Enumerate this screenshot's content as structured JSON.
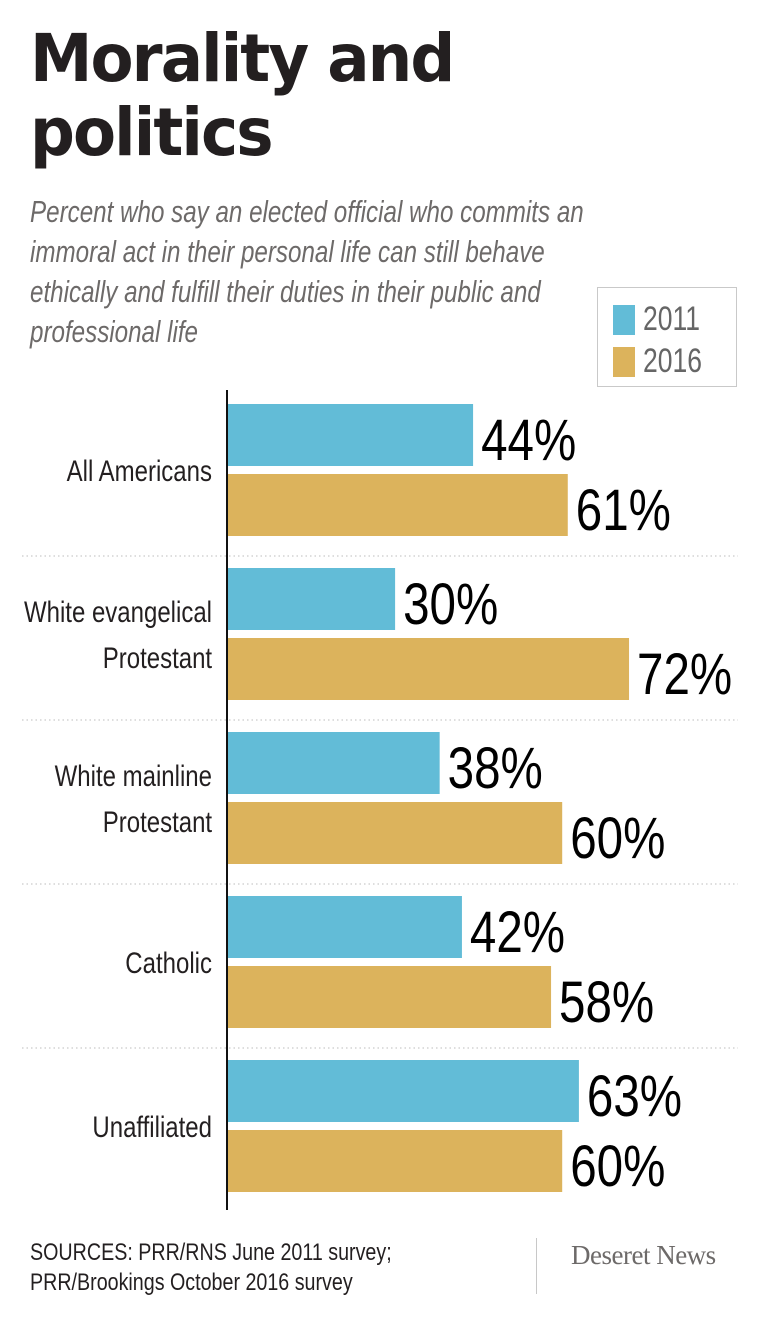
{
  "header": {
    "title_line1": "Morality and",
    "title_line2": "politics",
    "subtitle": "Percent who say an elected official who commits an immoral act in their personal life can still behave ethically and fulfill their duties in their public and professional life"
  },
  "legend": {
    "items": [
      {
        "label": "2011",
        "color": "#62bcd7"
      },
      {
        "label": "2016",
        "color": "#dcb35c"
      }
    ]
  },
  "chart_data": {
    "type": "bar",
    "orientation": "horizontal",
    "title": "Morality and politics",
    "subtitle": "Percent who say an elected official who commits an immoral act in their personal life can still behave ethically and fulfill their duties in their public and professional life",
    "categories": [
      "All Americans",
      "White evangelical Protestant",
      "White mainline Protestant",
      "Catholic",
      "Unaffiliated"
    ],
    "category_lines": [
      [
        "All Americans"
      ],
      [
        "White evangelical",
        "Protestant"
      ],
      [
        "White mainline",
        "Protestant"
      ],
      [
        "Catholic"
      ],
      [
        "Unaffiliated"
      ]
    ],
    "series": [
      {
        "name": "2011",
        "color": "#62bcd7",
        "values": [
          44,
          30,
          38,
          42,
          63
        ]
      },
      {
        "name": "2016",
        "color": "#dcb35c",
        "values": [
          61,
          72,
          60,
          58,
          60
        ]
      }
    ],
    "value_suffix": "%",
    "xlim": [
      0,
      100
    ],
    "xlabel": "",
    "ylabel": "",
    "grid": false,
    "legend_position": "top-right"
  },
  "footer": {
    "sources_line1": "SOURCES: PRR/RNS June 2011 survey;",
    "sources_line2": "PRR/Brookings October 2016 survey",
    "brand": "Deseret News"
  }
}
